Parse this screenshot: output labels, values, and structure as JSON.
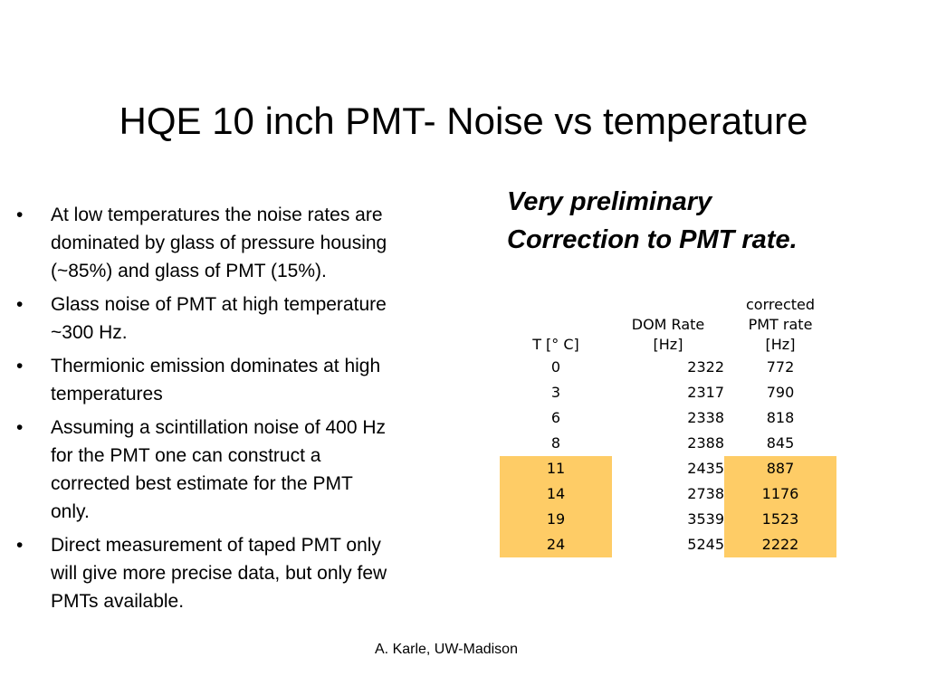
{
  "title": "HQE 10 inch PMT- Noise vs temperature",
  "bullets": [
    "At low temperatures the noise rates are dominated by glass of pressure housing (~85%) and glass of PMT (15%).",
    "Glass noise of PMT at high temperature ~300 Hz.",
    "Thermionic emission dominates at high temperatures",
    "Assuming a scintillation noise of 400 Hz for the PMT one can construct a corrected best estimate for the PMT only.",
    "Direct measurement of taped PMT only will give more precise data, but only few PMTs available."
  ],
  "subtitle": {
    "line1": "Very preliminary",
    "line2": "Correction to PMT rate."
  },
  "table": {
    "headers": {
      "temp": "T [°  C]",
      "dom_rate_line1": "DOM Rate",
      "dom_rate_line2": "[Hz]",
      "corrected_line1": "corrected",
      "corrected_line2": "PMT rate",
      "corrected_line3": "[Hz]"
    },
    "rows": [
      {
        "t": "0",
        "dom": "2322",
        "pmt": "772",
        "highlight": false
      },
      {
        "t": "3",
        "dom": "2317",
        "pmt": "790",
        "highlight": false
      },
      {
        "t": "6",
        "dom": "2338",
        "pmt": "818",
        "highlight": false
      },
      {
        "t": "8",
        "dom": "2388",
        "pmt": "845",
        "highlight": false
      },
      {
        "t": "11",
        "dom": "2435",
        "pmt": "887",
        "highlight": true
      },
      {
        "t": "14",
        "dom": "2738",
        "pmt": "1176",
        "highlight": true
      },
      {
        "t": "19",
        "dom": "3539",
        "pmt": "1523",
        "highlight": true
      },
      {
        "t": "24",
        "dom": "5245",
        "pmt": "2222",
        "highlight": true
      }
    ],
    "highlight_color": "#fecc66"
  },
  "footer": "A. Karle, UW-Madison"
}
